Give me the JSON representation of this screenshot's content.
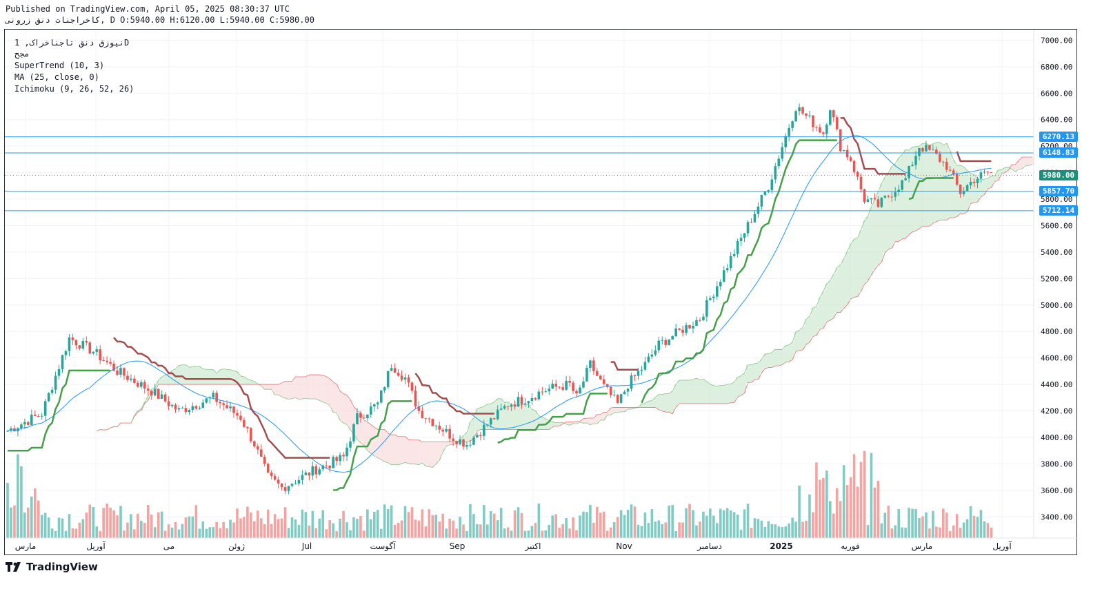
{
  "header": {
    "published": "Published on TradingView.com, April 05, 2025 08:30:37 UTC",
    "ohlc_line": "کاخراجنات  دنق زرونی, D O:5940.00 H:6120.00 L:5940.00 C:5980.00"
  },
  "legend": {
    "symbol": "نیوزق دنق تاجناخراک, 1D",
    "exchange": "مجح",
    "supertrend": "SuperTrend (10, 3)",
    "ma": "MA (25, close, 0)",
    "ichimoku": "Ichimoku (9, 26, 52, 26)"
  },
  "brand": {
    "logo_text": "TradingView"
  },
  "colors": {
    "up": "#26a69a",
    "down": "#ef5350",
    "ma": "#2196f3",
    "supertrend_up": "#43a047",
    "supertrend_down": "#a44b4b",
    "cloud_bull": "#c8e6c9",
    "cloud_bear": "#f8d7d7",
    "hline": "#2196f3",
    "last_price": "#1b8f7a"
  },
  "chart_data": {
    "type": "candlestick",
    "y_axis": {
      "range": [
        3240,
        7080
      ],
      "ticks": [
        3400,
        3600,
        3800,
        4000,
        4200,
        4400,
        4600,
        4800,
        5000,
        5200,
        5400,
        5600,
        5800,
        6000,
        6200,
        6400,
        6600,
        6800,
        7000
      ]
    },
    "x_axis_labels": [
      "مارس",
      "آوریل",
      "می",
      "ژوئن",
      "Jul",
      "آگوست",
      "Sep",
      "اکتبر",
      "Nov",
      "دسامبر",
      "2025",
      "فوریه",
      "مارس",
      "آوریل"
    ],
    "horizontal_levels": [
      6270.13,
      6148.83,
      5857.7,
      5712.14
    ],
    "level_labels": [
      "6270.13",
      "6148.83",
      "5857.70",
      "5712.14"
    ],
    "last_price": 5980.0,
    "last_price_label": "5980.00",
    "ohlc_last": {
      "open": 5940.0,
      "high": 6120.0,
      "low": 5940.0,
      "close": 5980.0
    },
    "price_path": [
      [
        0,
        4050
      ],
      [
        10,
        4180
      ],
      [
        18,
        4750
      ],
      [
        25,
        4650
      ],
      [
        32,
        4500
      ],
      [
        42,
        4350
      ],
      [
        50,
        4200
      ],
      [
        55,
        4250
      ],
      [
        60,
        4300
      ],
      [
        68,
        4150
      ],
      [
        72,
        3950
      ],
      [
        76,
        3700
      ],
      [
        80,
        3620
      ],
      [
        86,
        3700
      ],
      [
        90,
        3760
      ],
      [
        94,
        3800
      ],
      [
        98,
        3850
      ],
      [
        102,
        4150
      ],
      [
        108,
        4250
      ],
      [
        112,
        4550
      ],
      [
        116,
        4450
      ],
      [
        120,
        4200
      ],
      [
        125,
        4100
      ],
      [
        130,
        4000
      ],
      [
        134,
        3950
      ],
      [
        140,
        4100
      ],
      [
        146,
        4250
      ],
      [
        152,
        4300
      ],
      [
        156,
        4350
      ],
      [
        160,
        4380
      ],
      [
        164,
        4400
      ],
      [
        166,
        4300
      ],
      [
        170,
        4550
      ],
      [
        174,
        4380
      ],
      [
        178,
        4250
      ],
      [
        181,
        4400
      ],
      [
        186,
        4550
      ],
      [
        190,
        4700
      ],
      [
        196,
        4800
      ],
      [
        202,
        4900
      ],
      [
        206,
        5100
      ],
      [
        210,
        5300
      ],
      [
        214,
        5500
      ],
      [
        218,
        5700
      ],
      [
        222,
        5900
      ],
      [
        226,
        6200
      ],
      [
        230,
        6500
      ],
      [
        234,
        6400
      ],
      [
        238,
        6300
      ],
      [
        240,
        6500
      ],
      [
        243,
        6200
      ],
      [
        246,
        6100
      ],
      [
        250,
        5800
      ],
      [
        254,
        5750
      ],
      [
        258,
        5850
      ],
      [
        262,
        5950
      ],
      [
        266,
        6200
      ],
      [
        270,
        6150
      ],
      [
        274,
        6050
      ],
      [
        278,
        5850
      ],
      [
        282,
        5950
      ],
      [
        286,
        6000
      ],
      [
        292,
        5980
      ]
    ],
    "ma_period": 25,
    "supertrend": {
      "period": 10,
      "multiplier": 3
    },
    "ichimoku": {
      "conversion": 9,
      "base": 26,
      "span_b": 52,
      "displacement": 26
    },
    "volume_note": "volume histogram at bottom, colored by candle direction"
  }
}
